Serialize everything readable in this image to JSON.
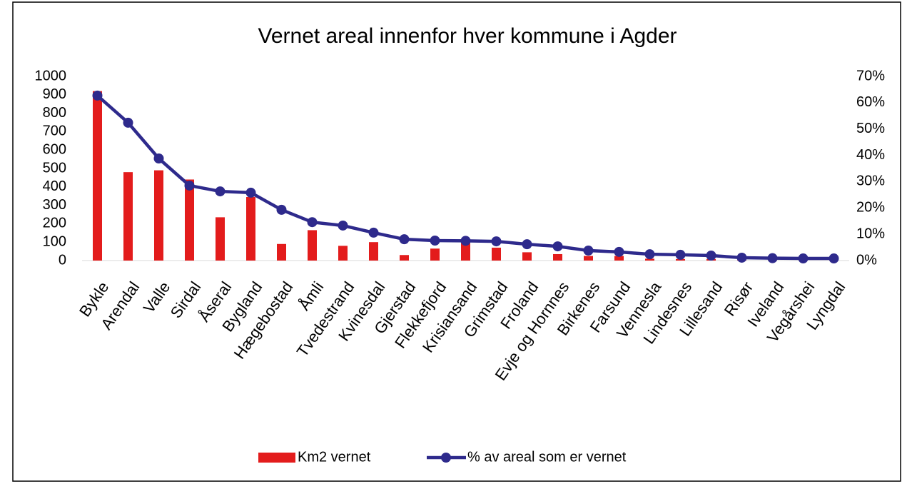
{
  "chart_data": {
    "type": "bar",
    "title": "Vernet areal innenfor hver kommune i Agder",
    "categories": [
      "Bykle",
      "Arendal",
      "Valle",
      "Sirdal",
      "Åseral",
      "Bygland",
      "Hægebostad",
      "Åmli",
      "Tvedestrand",
      "Kvinesdal",
      "Gjerstad",
      "Flekkefjord",
      "Krisiansand",
      "Grimstad",
      "Froland",
      "Evje og Hornnes",
      "Birkenes",
      "Farsund",
      "Vennesla",
      "Lindesnes",
      "Lillesand",
      "Risør",
      "Iveland",
      "Vegårshei",
      "Lyngdal"
    ],
    "series": [
      {
        "name": "Km2 vernet",
        "type": "bar",
        "color": "#e31c1c",
        "values": [
          920,
          480,
          490,
          440,
          235,
          345,
          90,
          165,
          80,
          100,
          30,
          65,
          95,
          70,
          45,
          35,
          25,
          25,
          10,
          8,
          8,
          3,
          3,
          2,
          2
        ]
      },
      {
        "name": "% av areal som er vernet",
        "type": "line",
        "axis": "y2",
        "color": "#2e2a8c",
        "values": [
          62.7,
          52.4,
          38.8,
          28.5,
          26.3,
          25.8,
          19.3,
          14.6,
          13.3,
          10.6,
          8.1,
          7.6,
          7.5,
          7.3,
          6.2,
          5.4,
          3.8,
          3.3,
          2.4,
          2.2,
          1.9,
          1.1,
          0.9,
          0.8,
          0.8
        ]
      }
    ],
    "ylim": [
      0,
      1000
    ],
    "yticks": [
      0,
      100,
      200,
      300,
      400,
      500,
      600,
      700,
      800,
      900,
      1000
    ],
    "y2lim": [
      0,
      70
    ],
    "y2ticks": [
      {
        "value": 0,
        "label": "0%"
      },
      {
        "value": 10,
        "label": "10%"
      },
      {
        "value": 20,
        "label": "20%"
      },
      {
        "value": 30,
        "label": "30%"
      },
      {
        "value": 40,
        "label": "40%"
      },
      {
        "value": 50,
        "label": "50%"
      },
      {
        "value": 60,
        "label": "60%"
      },
      {
        "value": 70,
        "label": "70%"
      }
    ],
    "grid": false,
    "legend": "bottom"
  }
}
